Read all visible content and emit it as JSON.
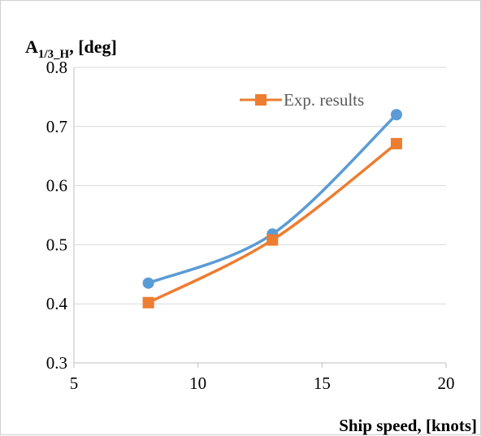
{
  "chart_data": {
    "type": "line",
    "ylabel": {
      "main": "A",
      "sub": "1/3_H",
      "suffix": ", [deg]"
    },
    "xlabel": "Ship speed, [knots]",
    "xlim": [
      5,
      20
    ],
    "ylim": [
      0.3,
      0.8
    ],
    "xticks": [
      "5",
      "10",
      "15",
      "20"
    ],
    "yticks": [
      "0.3",
      "0.4",
      "0.5",
      "0.6",
      "0.7",
      "0.8"
    ],
    "grid": "horizontal",
    "legend_position": "top-right",
    "series": [
      {
        "x": [
          8,
          13,
          18
        ],
        "values": [
          0.435,
          0.518,
          0.72
        ],
        "color": "#5b9bd5",
        "marker": "circle"
      },
      {
        "name": "Exp. results",
        "x": [
          8,
          13,
          18
        ],
        "values": [
          0.402,
          0.508,
          0.671
        ],
        "color": "#ed7d31",
        "marker": "square"
      }
    ]
  }
}
